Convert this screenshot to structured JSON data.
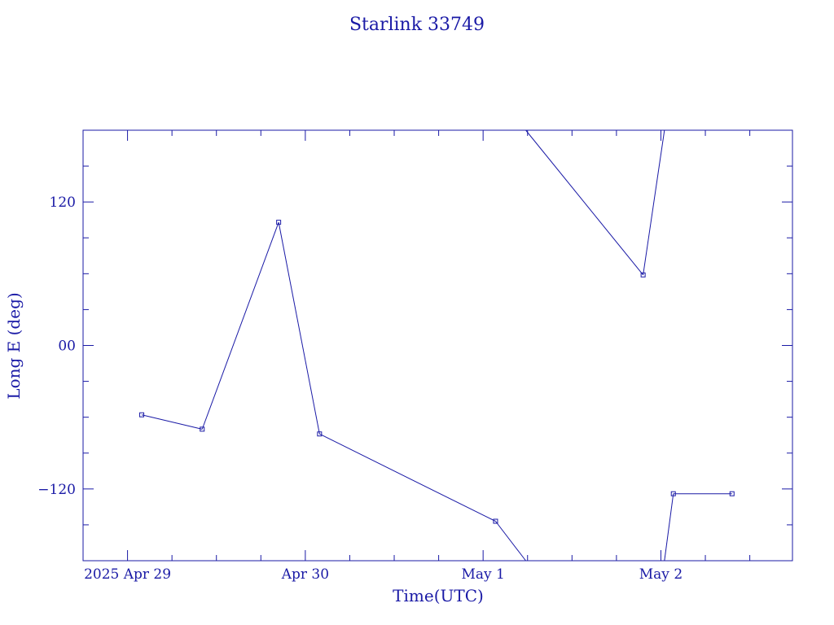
{
  "chart_data": {
    "type": "line",
    "title": "Starlink 33749",
    "xlabel": "Time(UTC)",
    "ylabel": "Long E (deg)",
    "x_unit": "days (UTC), 0 = 2025 Apr 29 00:00",
    "xlim": [
      -0.25,
      3.74
    ],
    "ylim": [
      -180,
      180
    ],
    "x_ticks": [
      {
        "value": 0,
        "label": "2025 Apr 29"
      },
      {
        "value": 1,
        "label": "Apr 30"
      },
      {
        "value": 2,
        "label": "May  1"
      },
      {
        "value": 3,
        "label": "May  2"
      }
    ],
    "y_ticks": [
      {
        "value": 120,
        "label": "120"
      },
      {
        "value": 0,
        "label": "00"
      },
      {
        "value": -120,
        "label": "−120"
      }
    ],
    "series": [
      {
        "color": "#1a1aa6",
        "points": [
          {
            "x": 0.08,
            "y": -58
          },
          {
            "x": 0.42,
            "y": -70
          },
          {
            "x": 0.85,
            "y": 103
          },
          {
            "x": 1.08,
            "y": -74
          },
          {
            "x": 2.07,
            "y": -147
          },
          {
            "x": 2.24,
            "y": -180
          },
          {
            "x": 2.24,
            "y": 180
          },
          {
            "x": 2.9,
            "y": 59
          },
          {
            "x": 3.02,
            "y": 180
          },
          {
            "x": 3.02,
            "y": -180
          },
          {
            "x": 3.07,
            "y": -124
          },
          {
            "x": 3.4,
            "y": -124
          }
        ],
        "markers": [
          0,
          1,
          2,
          3,
          4,
          7,
          10,
          11
        ]
      }
    ],
    "grid": false,
    "legend": "none"
  }
}
